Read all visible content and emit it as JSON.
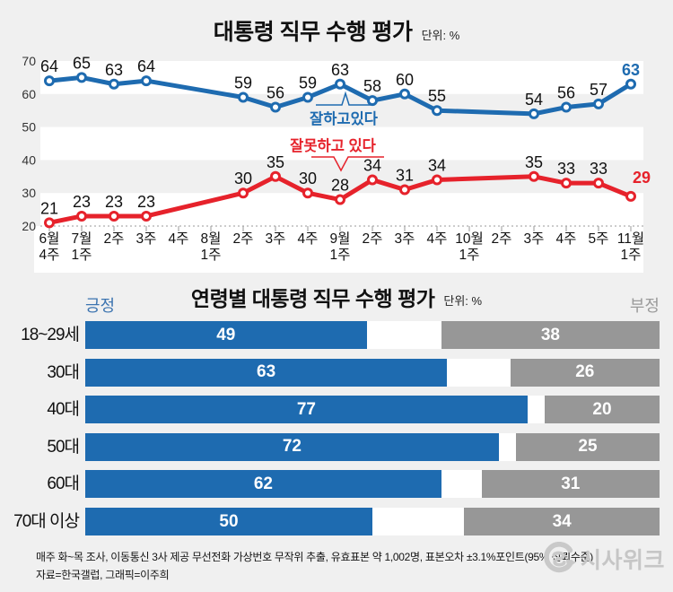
{
  "colors": {
    "blue": "#1e6bb0",
    "red": "#e6222b",
    "gray_bar": "#979797",
    "positive_label": "#3c74b0",
    "negative_label": "#9a9a9a",
    "panel": "#ffffff",
    "band": "#f0f0f0",
    "axis": "#9a9a9a",
    "label_text": "#111111",
    "logo": "#c9c9c9"
  },
  "chart_data": [
    {
      "type": "line",
      "title": "대통령 직무 수행 평가",
      "unit_label": "단위: %",
      "ylim": [
        20,
        70
      ],
      "yticks": [
        70,
        60,
        50,
        40,
        30,
        20
      ],
      "categories": [
        "6월 4주",
        "7월 1주",
        "2주",
        "3주",
        "4주",
        "8월 1주",
        "2주",
        "3주",
        "4주",
        "9월 1주",
        "2주",
        "3주",
        "4주",
        "10월 1주",
        "2주",
        "3주",
        "4주",
        "5주",
        "11월 1주"
      ],
      "series": [
        {
          "name": "잘하고있다",
          "color": "#1e6bb0",
          "points": [
            {
              "i": 0,
              "v": 64
            },
            {
              "i": 1,
              "v": 65
            },
            {
              "i": 2,
              "v": 63
            },
            {
              "i": 3,
              "v": 64
            },
            {
              "i": 6,
              "v": 59
            },
            {
              "i": 7,
              "v": 56
            },
            {
              "i": 8,
              "v": 59
            },
            {
              "i": 9,
              "v": 63
            },
            {
              "i": 10,
              "v": 58
            },
            {
              "i": 11,
              "v": 60
            },
            {
              "i": 12,
              "v": 55
            },
            {
              "i": 15,
              "v": 54
            },
            {
              "i": 16,
              "v": 56
            },
            {
              "i": 17,
              "v": 57
            },
            {
              "i": 18,
              "v": 63
            }
          ]
        },
        {
          "name": "잘못하고 있다",
          "color": "#e6222b",
          "points": [
            {
              "i": 0,
              "v": 21
            },
            {
              "i": 1,
              "v": 23
            },
            {
              "i": 2,
              "v": 23
            },
            {
              "i": 3,
              "v": 23
            },
            {
              "i": 6,
              "v": 30
            },
            {
              "i": 7,
              "v": 35
            },
            {
              "i": 8,
              "v": 30
            },
            {
              "i": 9,
              "v": 28
            },
            {
              "i": 10,
              "v": 34
            },
            {
              "i": 11,
              "v": 31
            },
            {
              "i": 12,
              "v": 34
            },
            {
              "i": 15,
              "v": 35
            },
            {
              "i": 16,
              "v": 33
            },
            {
              "i": 17,
              "v": 33
            },
            {
              "i": 18,
              "v": 29
            }
          ]
        }
      ]
    },
    {
      "type": "bar",
      "title": "연령별 대통령 직무 수행 평가",
      "unit_label": "단위: %",
      "legend": {
        "positive": "긍정",
        "negative": "부정"
      },
      "categories": [
        "18~29세",
        "30대",
        "40대",
        "50대",
        "60대",
        "70대 이상"
      ],
      "series": [
        {
          "name": "긍정",
          "color": "#1e6bb0",
          "values": [
            49,
            63,
            77,
            72,
            62,
            50
          ]
        },
        {
          "name": "부정",
          "color": "#979797",
          "values": [
            38,
            26,
            20,
            25,
            31,
            34
          ]
        }
      ],
      "xlim": [
        0,
        100
      ]
    }
  ],
  "footer": {
    "line1": "매주 화~목 조사, 이동통신 3사 제공 무선전화 가상번호 무작위 추출, 유효표본 약 1,002명, 표본오차 ±3.1%포인트(95% 신뢰수준)",
    "line2": "자료=한국갤럽, 그래픽=이주희",
    "logo_text": "시사위크"
  }
}
